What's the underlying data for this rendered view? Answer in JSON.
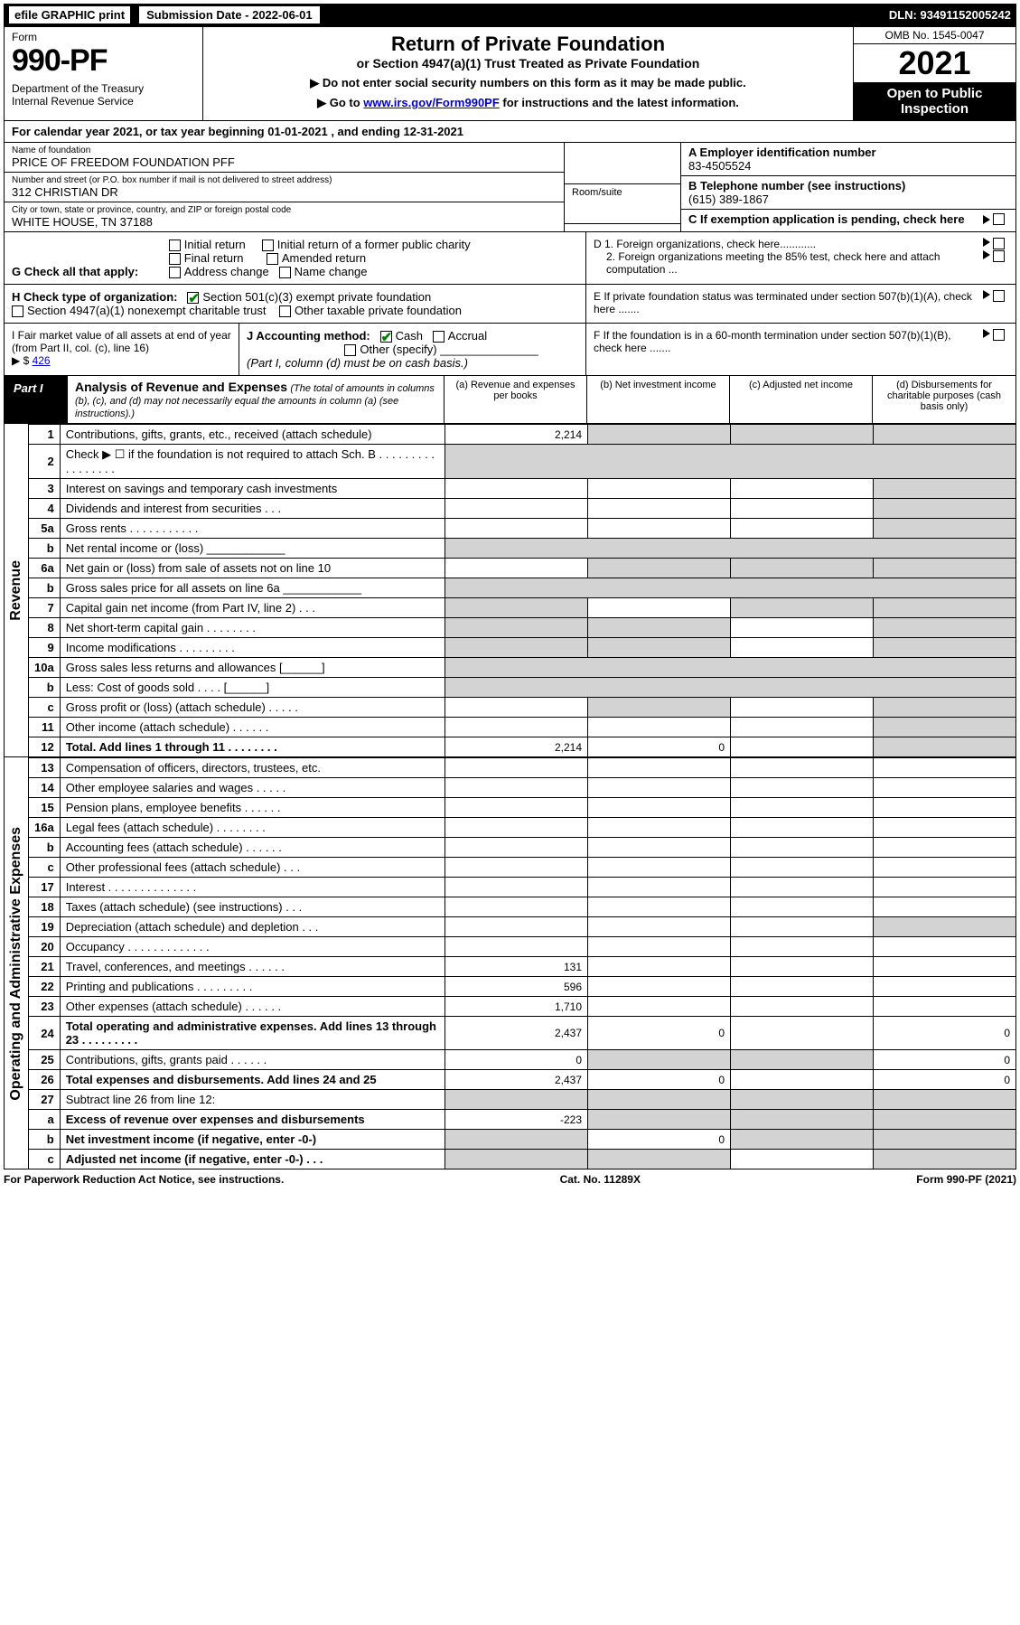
{
  "topbar": {
    "efile": "efile GRAPHIC print",
    "subdate_label": "Submission Date - 2022-06-01",
    "dln": "DLN: 93491152005242"
  },
  "header": {
    "form_label": "Form",
    "form_no": "990-PF",
    "dept": "Department of the Treasury\nInternal Revenue Service",
    "title": "Return of Private Foundation",
    "subtitle": "or Section 4947(a)(1) Trust Treated as Private Foundation",
    "note1": "▶ Do not enter social security numbers on this form as it may be made public.",
    "note2_pre": "▶ Go to ",
    "note2_link": "www.irs.gov/Form990PF",
    "note2_post": " for instructions and the latest information.",
    "omb": "OMB No. 1545-0047",
    "year": "2021",
    "open": "Open to Public Inspection"
  },
  "calendar": "For calendar year 2021, or tax year beginning 01-01-2021              , and ending 12-31-2021",
  "id": {
    "name_lbl": "Name of foundation",
    "name_val": "PRICE OF FREEDOM FOUNDATION PFF",
    "addr_lbl": "Number and street (or P.O. box number if mail is not delivered to street address)",
    "addr_val": "312 CHRISTIAN DR",
    "room_lbl": "Room/suite",
    "city_lbl": "City or town, state or province, country, and ZIP or foreign postal code",
    "city_val": "WHITE HOUSE, TN  37188",
    "A": "A Employer identification number",
    "ein": "83-4505524",
    "B": "B Telephone number (see instructions)",
    "phone": "(615) 389-1867",
    "C": "C If exemption application is pending, check here"
  },
  "G": {
    "label": "G Check all that apply:",
    "opts": [
      "Initial return",
      "Initial return of a former public charity",
      "Final return",
      "Amended return",
      "Address change",
      "Name change"
    ]
  },
  "D": {
    "d1": "D 1. Foreign organizations, check here............",
    "d2": "2. Foreign organizations meeting the 85% test, check here and attach computation ..."
  },
  "H": {
    "label": "H Check type of organization:",
    "o1": "Section 501(c)(3) exempt private foundation",
    "o2": "Section 4947(a)(1) nonexempt charitable trust",
    "o3": "Other taxable private foundation"
  },
  "E": "E  If private foundation status was terminated under section 507(b)(1)(A), check here .......",
  "I": {
    "label": "I Fair market value of all assets at end of year (from Part II, col. (c), line 16)",
    "amt_pre": "▶ $ ",
    "amt": "426"
  },
  "J": {
    "label": "J Accounting method:",
    "o1": "Cash",
    "o2": "Accrual",
    "o3": "Other (specify)",
    "note": "(Part I, column (d) must be on cash basis.)"
  },
  "F": "F  If the foundation is in a 60-month termination under section 507(b)(1)(B), check here .......",
  "part1": {
    "tab": "Part I",
    "title": "Analysis of Revenue and Expenses",
    "sub": "(The total of amounts in columns (b), (c), and (d) may not necessarily equal the amounts in column (a) (see instructions).)",
    "colA": "(a)   Revenue and expenses per books",
    "colB": "(b)   Net investment income",
    "colC": "(c)   Adjusted net income",
    "colD": "(d)  Disbursements for charitable purposes (cash basis only)"
  },
  "side_rev": "Revenue",
  "side_exp": "Operating and Administrative Expenses",
  "rows_rev": [
    {
      "no": "1",
      "desc": "Contributions, gifts, grants, etc., received (attach schedule)",
      "a": "2,214",
      "bgray": true,
      "cgray": true,
      "dgray": true
    },
    {
      "no": "2",
      "desc": "Check ▶ ☐ if the foundation is not required to attach Sch. B   .  .  .  .  .  .  .  .  .  .  .  .  .  .  .  .  .",
      "allgray": true
    },
    {
      "no": "3",
      "desc": "Interest on savings and temporary cash investments",
      "a": "",
      "b": "",
      "c": "",
      "dgray": true
    },
    {
      "no": "4",
      "desc": "Dividends and interest from securities    .   .   .",
      "a": "",
      "b": "",
      "c": "",
      "dgray": true
    },
    {
      "no": "5a",
      "desc": "Gross rents     .   .   .   .   .   .   .   .   .   .   .",
      "a": "",
      "b": "",
      "c": "",
      "dgray": true
    },
    {
      "no": "b",
      "desc": "Net rental income or (loss)  ____________",
      "allgray": true
    },
    {
      "no": "6a",
      "desc": "Net gain or (loss) from sale of assets not on line 10",
      "a": "",
      "bgray": true,
      "cgray": true,
      "dgray": true
    },
    {
      "no": "b",
      "desc": "Gross sales price for all assets on line 6a ____________",
      "allgray": true
    },
    {
      "no": "7",
      "desc": "Capital gain net income (from Part IV, line 2)   .   .   .",
      "agray": true,
      "b": "",
      "cgray": true,
      "dgray": true
    },
    {
      "no": "8",
      "desc": "Net short-term capital gain  .   .   .   .   .   .   .   .",
      "agray": true,
      "bgray": true,
      "c": "",
      "dgray": true
    },
    {
      "no": "9",
      "desc": "Income modifications  .   .   .   .   .   .   .   .   .",
      "agray": true,
      "bgray": true,
      "c": "",
      "dgray": true
    },
    {
      "no": "10a",
      "desc": "Gross sales less returns and allowances  [______]",
      "allgray": true
    },
    {
      "no": "b",
      "desc": "Less: Cost of goods sold    .   .   .   .   [______]",
      "allgray": true
    },
    {
      "no": "c",
      "desc": "Gross profit or (loss) (attach schedule)    .   .   .   .   .",
      "a": "",
      "bgray": true,
      "c": "",
      "dgray": true
    },
    {
      "no": "11",
      "desc": "Other income (attach schedule)    .   .   .   .   .   .",
      "a": "",
      "b": "",
      "c": "",
      "dgray": true
    },
    {
      "no": "12",
      "desc": "Total. Add lines 1 through 11   .   .   .   .   .   .   .   .",
      "bold": true,
      "a": "2,214",
      "b": "0",
      "c": "",
      "dgray": true
    }
  ],
  "rows_exp": [
    {
      "no": "13",
      "desc": "Compensation of officers, directors, trustees, etc.",
      "a": "",
      "b": "",
      "c": "",
      "d": ""
    },
    {
      "no": "14",
      "desc": "Other employee salaries and wages   .   .   .   .   .",
      "a": "",
      "b": "",
      "c": "",
      "d": ""
    },
    {
      "no": "15",
      "desc": "Pension plans, employee benefits  .   .   .   .   .   .",
      "a": "",
      "b": "",
      "c": "",
      "d": ""
    },
    {
      "no": "16a",
      "desc": "Legal fees (attach schedule) .   .   .   .   .   .   .   .",
      "a": "",
      "b": "",
      "c": "",
      "d": ""
    },
    {
      "no": "b",
      "desc": "Accounting fees (attach schedule)  .   .   .   .   .   .",
      "a": "",
      "b": "",
      "c": "",
      "d": ""
    },
    {
      "no": "c",
      "desc": "Other professional fees (attach schedule)    .   .   .",
      "a": "",
      "b": "",
      "c": "",
      "d": ""
    },
    {
      "no": "17",
      "desc": "Interest  .   .   .   .   .   .   .   .   .   .   .   .   .   .",
      "a": "",
      "b": "",
      "c": "",
      "d": ""
    },
    {
      "no": "18",
      "desc": "Taxes (attach schedule) (see instructions)    .   .   .",
      "a": "",
      "b": "",
      "c": "",
      "d": ""
    },
    {
      "no": "19",
      "desc": "Depreciation (attach schedule) and depletion   .   .   .",
      "a": "",
      "b": "",
      "c": "",
      "dgray": true
    },
    {
      "no": "20",
      "desc": "Occupancy .   .   .   .   .   .   .   .   .   .   .   .   .",
      "a": "",
      "b": "",
      "c": "",
      "d": ""
    },
    {
      "no": "21",
      "desc": "Travel, conferences, and meetings .   .   .   .   .   .",
      "a": "131",
      "b": "",
      "c": "",
      "d": ""
    },
    {
      "no": "22",
      "desc": "Printing and publications .   .   .   .   .   .   .   .   .",
      "a": "596",
      "b": "",
      "c": "",
      "d": ""
    },
    {
      "no": "23",
      "desc": "Other expenses (attach schedule)  .   .   .   .   .   .",
      "a": "1,710",
      "b": "",
      "c": "",
      "d": ""
    },
    {
      "no": "24",
      "desc": "Total operating and administrative expenses. Add lines 13 through 23   .   .   .   .   .   .   .   .   .",
      "bold": true,
      "a": "2,437",
      "b": "0",
      "c": "",
      "d": "0"
    },
    {
      "no": "25",
      "desc": "Contributions, gifts, grants paid     .   .   .   .   .   .",
      "a": "0",
      "bgray": true,
      "cgray": true,
      "d": "0"
    },
    {
      "no": "26",
      "desc": "Total expenses and disbursements. Add lines 24 and 25",
      "bold": true,
      "a": "2,437",
      "b": "0",
      "c": "",
      "d": "0"
    },
    {
      "no": "27",
      "desc": "Subtract line 26 from line 12:",
      "allgray_amt": true
    },
    {
      "no": "a",
      "desc": "Excess of revenue over expenses and disbursements",
      "bold": true,
      "a": "-223",
      "bgray": true,
      "cgray": true,
      "dgray": true
    },
    {
      "no": "b",
      "desc": "Net investment income (if negative, enter -0-)",
      "bold": true,
      "agray": true,
      "b": "0",
      "cgray": true,
      "dgray": true
    },
    {
      "no": "c",
      "desc": "Adjusted net income (if negative, enter -0-)   .   .   .",
      "bold": true,
      "agray": true,
      "bgray": true,
      "c": "",
      "dgray": true
    }
  ],
  "footer": {
    "left": "For Paperwork Reduction Act Notice, see instructions.",
    "mid": "Cat. No. 11289X",
    "right": "Form 990-PF (2021)"
  }
}
